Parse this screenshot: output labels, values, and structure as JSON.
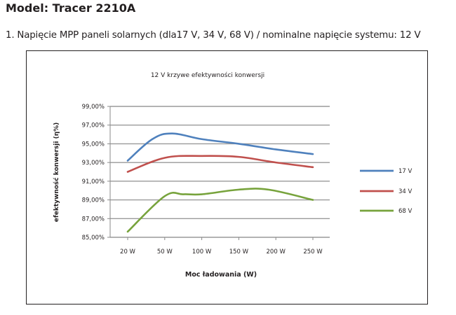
{
  "header": {
    "model_title": "Model: Tracer 2210A",
    "subtitle": "1. Napięcie MPP paneli solarnych (dla17 V, 34 V, 68 V) / nominalne napięcie systemu: 12 V"
  },
  "chart_data": {
    "type": "line",
    "title": "12 V krzywe efektywności konwersji",
    "xlabel": "Moc ładowania (W)",
    "ylabel": "efektywność konwersji (η%)",
    "categories": [
      "20 W",
      "50 W",
      "100 W",
      "150 W",
      "200 W",
      "250 W"
    ],
    "y_ticks": [
      "85,00%",
      "87,00%",
      "89,00%",
      "91,00%",
      "93,00%",
      "95,00%",
      "97,00%",
      "99,00%"
    ],
    "ylim": [
      85,
      99
    ],
    "grid": true,
    "legend_position": "right",
    "series": [
      {
        "name": "17 V",
        "color": "#4f81bd",
        "points": [
          [
            20,
            93.2
          ],
          [
            40,
            95.5
          ],
          [
            60,
            96.1
          ],
          [
            100,
            95.5
          ],
          [
            150,
            95.0
          ],
          [
            200,
            94.4
          ],
          [
            250,
            93.9
          ]
        ]
      },
      {
        "name": "34 V",
        "color": "#c0504d",
        "points": [
          [
            20,
            92.0
          ],
          [
            50,
            93.5
          ],
          [
            100,
            93.7
          ],
          [
            150,
            93.6
          ],
          [
            200,
            93.0
          ],
          [
            250,
            92.5
          ]
        ]
      },
      {
        "name": "68 V",
        "color": "#77a33c",
        "points": [
          [
            20,
            85.6
          ],
          [
            50,
            89.4
          ],
          [
            75,
            89.6
          ],
          [
            100,
            89.6
          ],
          [
            150,
            90.1
          ],
          [
            190,
            90.1
          ],
          [
            250,
            89.0
          ]
        ]
      }
    ]
  }
}
